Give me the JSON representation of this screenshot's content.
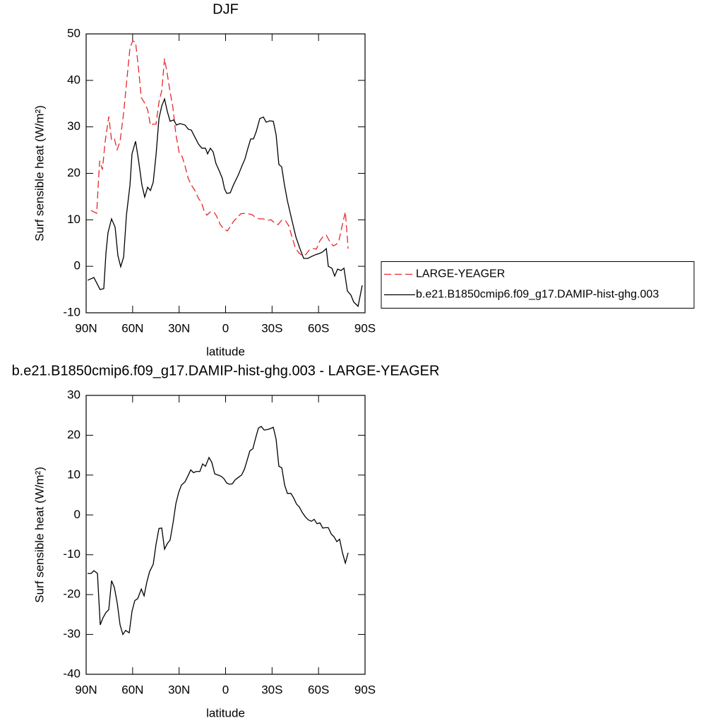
{
  "chart_data": [
    {
      "type": "line",
      "title": "DJF",
      "xlabel": "latitude",
      "ylabel": "Surf sensible heat (W/m²)",
      "xlim": [
        90,
        -90
      ],
      "xticks": [
        {
          "value": 90,
          "label": "90N"
        },
        {
          "value": 60,
          "label": "60N"
        },
        {
          "value": 30,
          "label": "30N"
        },
        0,
        {
          "value": -30,
          "label": "30S"
        },
        {
          "value": -60,
          "label": "60S"
        },
        {
          "value": -90,
          "label": "90S"
        }
      ],
      "ylim": [
        -10,
        50
      ],
      "yticks": [
        -10,
        0,
        10,
        20,
        30,
        40,
        50
      ],
      "legend": "right",
      "series": [
        {
          "name": "LARGE-YEAGER",
          "color": "#e8262a",
          "dash": true,
          "x": [
            86.8,
            83.2,
            81.3,
            79.5,
            77.7,
            75.4,
            73.6,
            71.8,
            70,
            68.1,
            65.8,
            63.6,
            61.7,
            59.9,
            58.1,
            56.3,
            54.4,
            52.2,
            50.3,
            48.5,
            46.7,
            44.9,
            43,
            41.2,
            39.4,
            37.6,
            35.8,
            34,
            32.1,
            29.8,
            28,
            26.2,
            24.1,
            22.1,
            19.8,
            17.5,
            15.7,
            13.9,
            12.1,
            9.8,
            7.6,
            5.8,
            3.5,
            1.3,
            -1.1,
            -3.4,
            -5.2,
            -7.5,
            -9.8,
            -12.5,
            -14.8,
            -17.1,
            -19.4,
            -21.7,
            -24.4,
            -27.1,
            -29.4,
            -31.7,
            -34,
            -36.2,
            -38.5,
            -40.8,
            -42.6,
            -44.9,
            -47.2,
            -49.5,
            -51.7,
            -54,
            -56.3,
            -58.6,
            -60.9,
            -62.7,
            -65,
            -67.3,
            -69.5,
            -71.4,
            -73.2,
            -75,
            -77.3,
            -79.1
          ],
          "values": [
            12.0,
            11.4,
            22.7,
            20.8,
            26.9,
            32.2,
            27.2,
            27.5,
            25.1,
            26.9,
            33.0,
            40.6,
            47.0,
            48.5,
            48.2,
            42.9,
            36.3,
            35.1,
            33.7,
            30.3,
            30.6,
            30.6,
            35.3,
            37.8,
            44.7,
            41.3,
            37.5,
            34.2,
            28.4,
            24.2,
            23.6,
            21.6,
            18.9,
            17.5,
            16.3,
            14.6,
            13.8,
            12.0,
            11.0,
            11.7,
            11.7,
            10.8,
            9.0,
            8.1,
            7.6,
            8.7,
            9.7,
            10.5,
            11.3,
            11.4,
            11.3,
            11.1,
            10.5,
            10.2,
            10.2,
            9.9,
            10.0,
            9.3,
            9.0,
            9.9,
            9.9,
            8.7,
            6.6,
            4.1,
            2.9,
            2.3,
            2.5,
            3.5,
            3.8,
            3.7,
            5.5,
            6.3,
            6.7,
            5.3,
            4.4,
            4.7,
            5.6,
            8.4,
            11.7,
            3.8
          ]
        },
        {
          "name": "b.e21.B1850cmip6.f09_g17.DAMIP-hist-ghg.003",
          "color": "#000000",
          "dash": false,
          "x": [
            89,
            85,
            81,
            78.6,
            77.2,
            75.9,
            73.6,
            71.3,
            69.5,
            67.7,
            65.8,
            64,
            61.7,
            60.4,
            58.1,
            56.3,
            54,
            52.2,
            50.3,
            48.5,
            46.7,
            44.9,
            43,
            41.2,
            39.4,
            37.6,
            35.8,
            33.5,
            31.7,
            29.4,
            26.2,
            24.1,
            22.1,
            19.8,
            17.5,
            15.3,
            13,
            11.6,
            9.8,
            8,
            6.2,
            3.9,
            2.1,
            0.7,
            -0.7,
            -3,
            -5.2,
            -8,
            -10.7,
            -12.5,
            -14.4,
            -16.2,
            -18,
            -19.8,
            -22.1,
            -24.4,
            -26.2,
            -28.5,
            -30.8,
            -32.6,
            -34.4,
            -36.2,
            -38.1,
            -39.9,
            -42.6,
            -45.4,
            -48.1,
            -50.4,
            -53.1,
            -55.4,
            -58.1,
            -60.9,
            -62.7,
            -65,
            -66.3,
            -68.6,
            -70.4,
            -72.3,
            -74.5,
            -76.4,
            -78.6,
            -80.9,
            -82.7,
            -85.5,
            -88.2
          ],
          "values": [
            -3.0,
            -2.4,
            -5.0,
            -4.8,
            2.9,
            7.2,
            10.2,
            8.4,
            2.3,
            -0.1,
            2.0,
            11.0,
            17.5,
            24.2,
            26.9,
            23.1,
            17.5,
            14.9,
            17.0,
            16.3,
            18.1,
            23.9,
            31.8,
            34.5,
            36.0,
            33.3,
            31.2,
            31.5,
            30.4,
            30.7,
            30.4,
            29.5,
            29.3,
            27.8,
            26.3,
            25.4,
            25.4,
            24.2,
            25.4,
            24.6,
            22.1,
            20.4,
            18.9,
            16.7,
            15.7,
            15.8,
            17.6,
            19.5,
            21.7,
            23.1,
            25.4,
            27.4,
            27.4,
            29.0,
            31.8,
            32.1,
            31.0,
            31.3,
            31.2,
            28.3,
            21.9,
            21.4,
            17.3,
            14.1,
            10.2,
            6.3,
            3.7,
            1.7,
            1.7,
            2.1,
            2.5,
            2.8,
            3.1,
            3.8,
            0.0,
            -0.4,
            -2.1,
            -0.6,
            -0.9,
            -0.4,
            -5.3,
            -6.2,
            -7.7,
            -8.6,
            -4.1
          ]
        }
      ]
    },
    {
      "type": "line",
      "title": "b.e21.B1850cmip6.f09_g17.DAMIP-hist-ghg.003 - LARGE-YEAGER",
      "xlabel": "latitude",
      "ylabel": "Surf sensible heat (W/m²)",
      "xlim": [
        90,
        -90
      ],
      "xticks": [
        {
          "value": 90,
          "label": "90N"
        },
        {
          "value": 60,
          "label": "60N"
        },
        {
          "value": 30,
          "label": "30N"
        },
        0,
        {
          "value": -30,
          "label": "30S"
        },
        {
          "value": -60,
          "label": "60S"
        },
        {
          "value": -90,
          "label": "90S"
        }
      ],
      "ylim": [
        -40,
        30
      ],
      "yticks": [
        -40,
        -30,
        -20,
        -10,
        0,
        10,
        20,
        30
      ],
      "series": [
        {
          "color": "#000000",
          "x": [
            89.1,
            86.8,
            85.0,
            82.7,
            80.9,
            79.1,
            77.2,
            75.4,
            73.6,
            71.8,
            69.9,
            68.1,
            66.3,
            64.5,
            62.2,
            60.4,
            58.6,
            56.7,
            54.4,
            52.6,
            50.8,
            49.0,
            46.7,
            44.9,
            43.0,
            41.2,
            39.4,
            37.6,
            35.8,
            33.9,
            32.1,
            30.3,
            28.5,
            26.2,
            24.4,
            22.5,
            20.7,
            18.9,
            16.6,
            14.8,
            13.0,
            10.7,
            8.9,
            7.0,
            4.8,
            2.9,
            1.1,
            -0.7,
            -2.5,
            -4.3,
            -6.2,
            -8.5,
            -10.3,
            -12.1,
            -13.9,
            -15.7,
            -17.6,
            -19.4,
            -21.2,
            -23.0,
            -24.9,
            -26.7,
            -28.5,
            -30.8,
            -32.6,
            -34.4,
            -36.3,
            -38.1,
            -39.9,
            -42.2,
            -44.0,
            -45.8,
            -47.6,
            -49.5,
            -51.7,
            -53.6,
            -55.4,
            -57.2,
            -59.0,
            -60.9,
            -62.7,
            -64.5,
            -66.3,
            -68.2,
            -70.0,
            -71.8,
            -73.6,
            -75.5,
            -77.3,
            -79.1
          ],
          "values": [
            -14.7,
            -14.7,
            -14.0,
            -14.7,
            -27.6,
            -25.8,
            -24.5,
            -23.8,
            -16.5,
            -18.2,
            -22.2,
            -27.6,
            -30.0,
            -29.0,
            -29.6,
            -24.2,
            -21.5,
            -21.0,
            -18.6,
            -20.3,
            -16.8,
            -14.2,
            -12.4,
            -7.4,
            -3.4,
            -3.3,
            -8.6,
            -7.2,
            -6.3,
            -2.0,
            2.8,
            5.6,
            7.5,
            8.3,
            9.7,
            11.3,
            10.6,
            10.9,
            10.9,
            12.8,
            12.2,
            14.4,
            13.2,
            10.3,
            10.0,
            9.7,
            9.1,
            8.0,
            7.7,
            7.8,
            8.8,
            9.5,
            10.0,
            11.4,
            13.7,
            16.1,
            16.6,
            19.3,
            21.8,
            22.2,
            21.3,
            21.4,
            21.6,
            22.0,
            19.0,
            12.2,
            11.8,
            7.5,
            5.4,
            5.4,
            4.2,
            2.7,
            2.0,
            0.6,
            -0.6,
            -1.3,
            -1.6,
            -1.1,
            -2.2,
            -2.0,
            -3.3,
            -3.2,
            -3.2,
            -4.8,
            -5.5,
            -6.7,
            -6.1,
            -9.6,
            -12.1,
            -9.5
          ]
        }
      ]
    }
  ]
}
